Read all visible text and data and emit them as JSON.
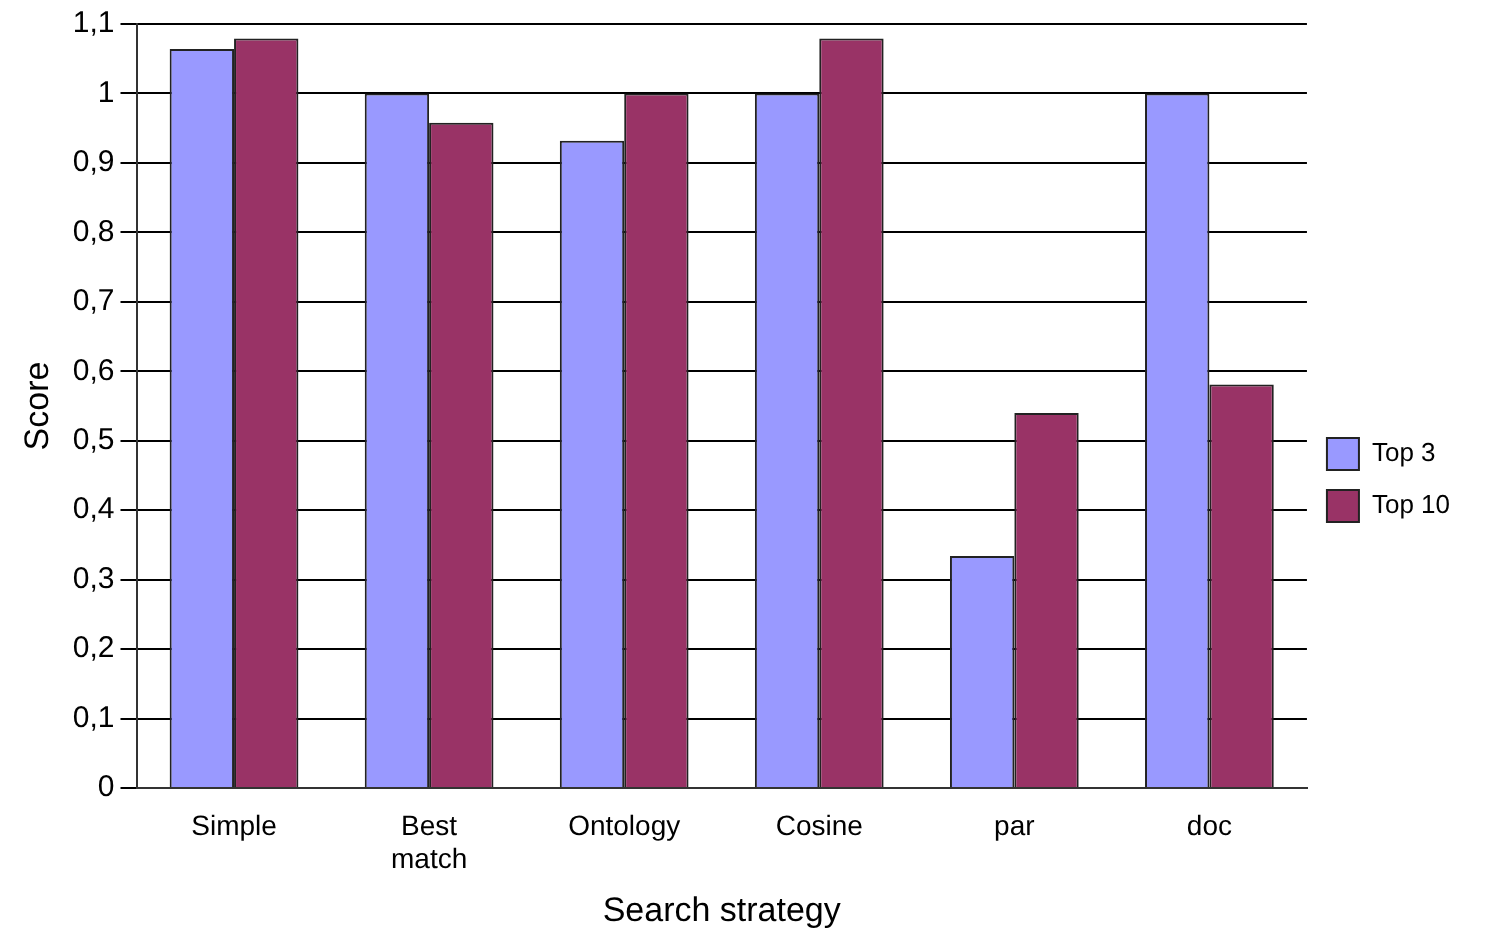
{
  "chart_data": {
    "type": "bar",
    "xlabel": "Search strategy",
    "ylabel": "Score",
    "categories": [
      "Simple",
      "Best match",
      "Ontology",
      "Cosine",
      "par",
      "doc"
    ],
    "series": [
      {
        "name": "Top 3",
        "color": "#9999ff",
        "values": [
          1.064,
          1.0,
          0.932,
          1.0,
          0.334,
          1.0
        ]
      },
      {
        "name": "Top 10",
        "color": "#993366",
        "values": [
          1.079,
          0.958,
          1.0,
          1.079,
          0.54,
          0.581
        ]
      }
    ],
    "ylim": [
      0,
      1.1
    ],
    "yticks": [
      0,
      {
        "value": 0.1,
        "label": "0,1"
      },
      {
        "value": 0.2,
        "label": "0,2"
      },
      {
        "value": 0.3,
        "label": "0,3"
      },
      {
        "value": 0.4,
        "label": "0,4"
      },
      {
        "value": 0.5,
        "label": "0,5"
      },
      {
        "value": 0.6,
        "label": "0,6"
      },
      {
        "value": 0.7,
        "label": "0,7"
      },
      {
        "value": 0.8,
        "label": "0,8"
      },
      {
        "value": 0.9,
        "label": "0,9"
      },
      1,
      {
        "value": 1.1,
        "label": "1,1"
      }
    ],
    "grid": "y",
    "legend": "right"
  }
}
